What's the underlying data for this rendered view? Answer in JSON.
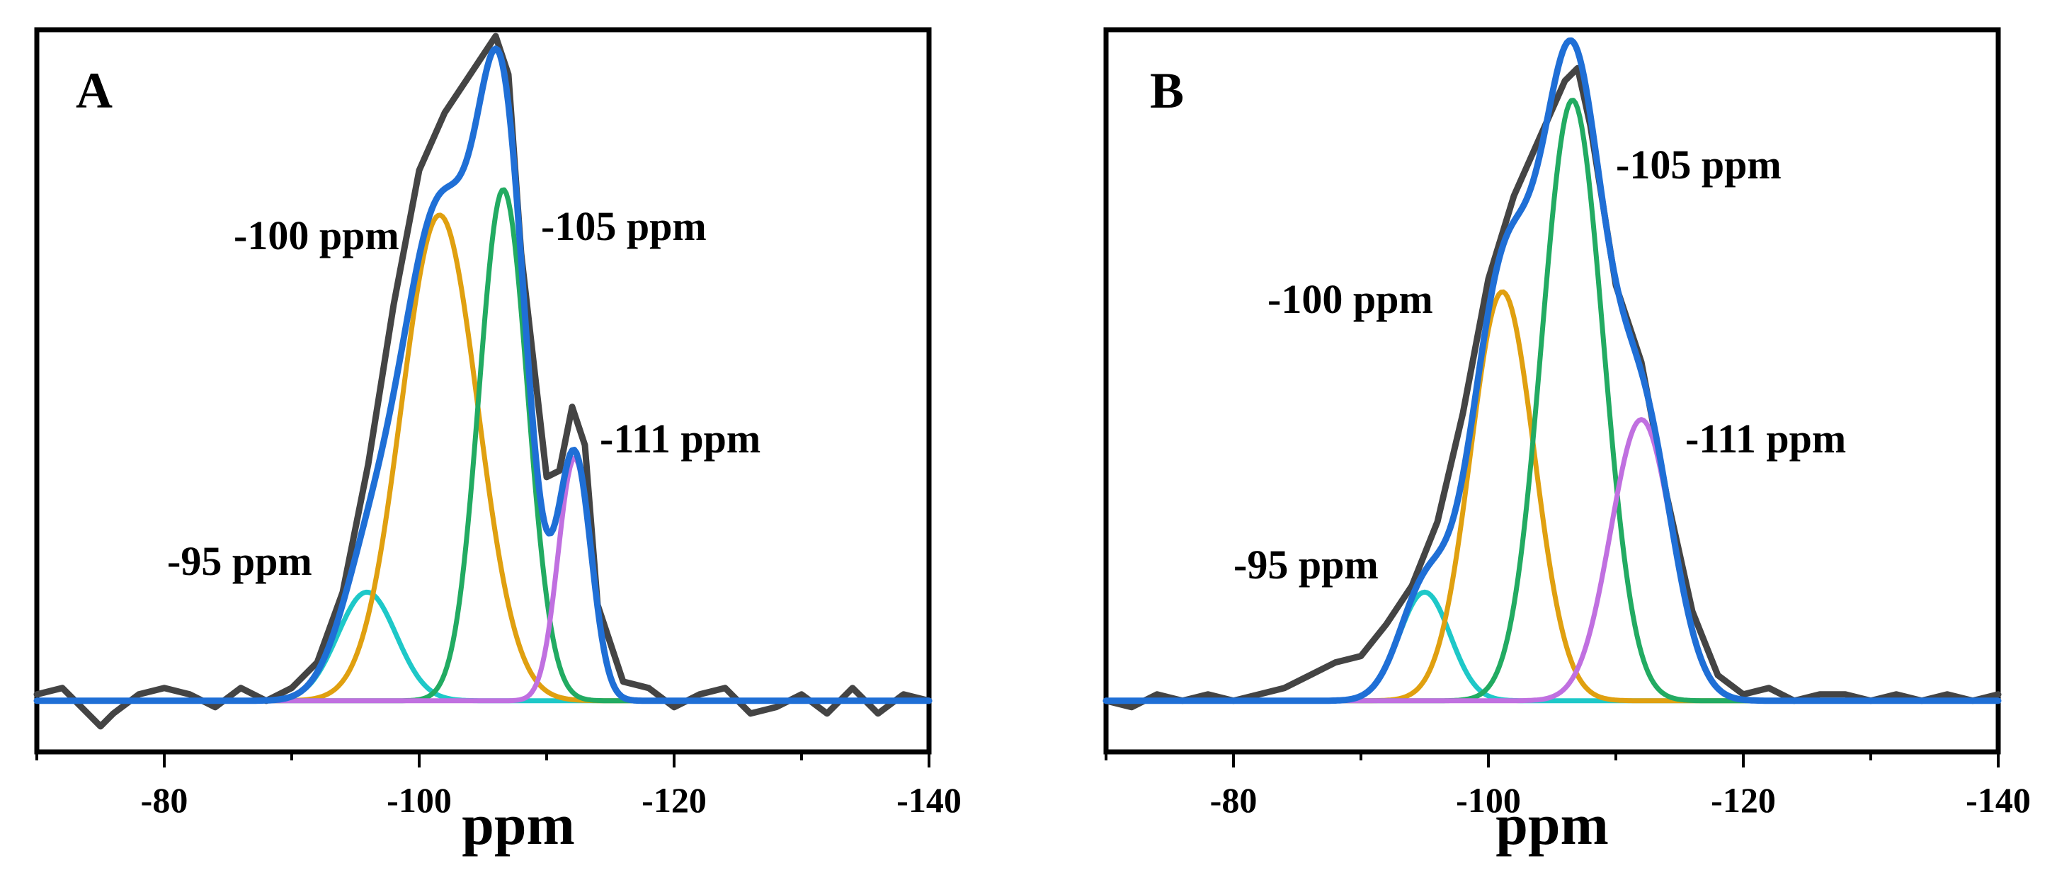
{
  "colors": {
    "experimental": "#444444",
    "fit": "#1f6fd6",
    "peak_95": "#1ec8c8",
    "peak_100": "#e0a010",
    "peak_105": "#22ab62",
    "peak_111": "#c070e0"
  },
  "chart_data": [
    {
      "type": "line",
      "panel_label": "A",
      "xlabel": "ppm",
      "ylabel": "",
      "xlim": [
        -70,
        -140
      ],
      "ylim": [
        -0.08,
        1.05
      ],
      "x_ticks": [
        -80,
        -100,
        -120,
        -140
      ],
      "x_tick_labels": [
        "-80",
        "-100",
        "-120",
        "-140"
      ],
      "annotations": [
        "-95 ppm",
        "-100 ppm",
        "-105 ppm",
        "-111 ppm"
      ],
      "components": [
        {
          "name": "-95 ppm",
          "center": -95.9,
          "amplitude": 0.17,
          "sigma": 2.3,
          "color_key": "peak_95"
        },
        {
          "name": "-100 ppm",
          "center": -101.6,
          "amplitude": 0.76,
          "sigma": 3.0,
          "color_key": "peak_100"
        },
        {
          "name": "-105 ppm",
          "center": -106.6,
          "amplitude": 0.8,
          "sigma": 1.9,
          "color_key": "peak_105"
        },
        {
          "name": "-111 ppm",
          "center": -112.2,
          "amplitude": 0.38,
          "sigma": 1.3,
          "color_key": "peak_111"
        }
      ],
      "series": [
        {
          "name": "experimental",
          "color_key": "experimental",
          "x": [
            -70,
            -72,
            -74,
            -75,
            -76,
            -78,
            -80,
            -82,
            -84,
            -86,
            -88,
            -90,
            -92,
            -94,
            -96,
            -98,
            -100,
            -102,
            -104,
            -106,
            -107,
            -108,
            -110,
            -111,
            -112,
            -113,
            -114,
            -116,
            -118,
            -120,
            -122,
            -124,
            -126,
            -128,
            -130,
            -132,
            -134,
            -136,
            -138,
            -140
          ],
          "y": [
            0.01,
            0.02,
            -0.02,
            -0.04,
            -0.02,
            0.01,
            0.02,
            0.01,
            -0.01,
            0.02,
            0.0,
            0.02,
            0.06,
            0.17,
            0.37,
            0.62,
            0.83,
            0.92,
            0.98,
            1.04,
            0.98,
            0.7,
            0.35,
            0.36,
            0.46,
            0.4,
            0.15,
            0.03,
            0.02,
            -0.01,
            0.01,
            0.02,
            -0.02,
            -0.01,
            0.01,
            -0.02,
            0.02,
            -0.02,
            0.01,
            0.0
          ]
        },
        {
          "name": "fit",
          "color_key": "fit"
        }
      ]
    },
    {
      "type": "line",
      "panel_label": "B",
      "xlabel": "ppm",
      "ylabel": "",
      "xlim": [
        -70,
        -140
      ],
      "ylim": [
        -0.08,
        1.05
      ],
      "x_ticks": [
        -80,
        -100,
        -120,
        -140
      ],
      "x_tick_labels": [
        "-80",
        "-100",
        "-120",
        "-140"
      ],
      "annotations": [
        "-95 ppm",
        "-100 ppm",
        "-105 ppm",
        "-111 ppm"
      ],
      "components": [
        {
          "name": "-95 ppm",
          "center": -95.0,
          "amplitude": 0.17,
          "sigma": 2.0,
          "color_key": "peak_95"
        },
        {
          "name": "-100 ppm",
          "center": -101.1,
          "amplitude": 0.64,
          "sigma": 2.5,
          "color_key": "peak_100"
        },
        {
          "name": "-105 ppm",
          "center": -106.6,
          "amplitude": 0.94,
          "sigma": 2.4,
          "color_key": "peak_105"
        },
        {
          "name": "-111 ppm",
          "center": -112.0,
          "amplitude": 0.44,
          "sigma": 2.4,
          "color_key": "peak_111"
        }
      ],
      "series": [
        {
          "name": "experimental",
          "color_key": "experimental",
          "x": [
            -70,
            -72,
            -74,
            -76,
            -78,
            -80,
            -82,
            -84,
            -86,
            -88,
            -90,
            -92,
            -94,
            -96,
            -98,
            -100,
            -102,
            -104,
            -106,
            -107,
            -108,
            -110,
            -112,
            -114,
            -116,
            -118,
            -120,
            -122,
            -124,
            -126,
            -128,
            -130,
            -132,
            -134,
            -136,
            -138,
            -140
          ],
          "y": [
            0.0,
            -0.01,
            0.01,
            0.0,
            0.01,
            0.0,
            0.01,
            0.02,
            0.04,
            0.06,
            0.07,
            0.12,
            0.18,
            0.28,
            0.45,
            0.66,
            0.79,
            0.88,
            0.97,
            0.99,
            0.9,
            0.65,
            0.53,
            0.32,
            0.14,
            0.04,
            0.01,
            0.02,
            0.0,
            0.01,
            0.01,
            0.0,
            0.01,
            0.0,
            0.01,
            0.0,
            0.01
          ]
        },
        {
          "name": "fit",
          "color_key": "fit"
        }
      ]
    }
  ]
}
